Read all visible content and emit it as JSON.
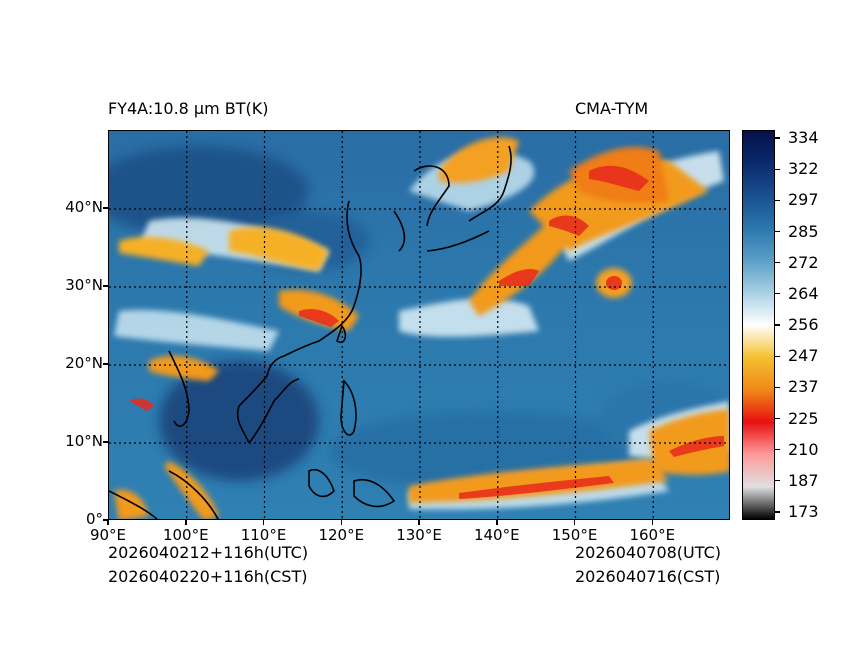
{
  "header": {
    "product": "FY4A:10.8 µm BT(K)",
    "model": "CMA-TYM"
  },
  "map": {
    "lat_labels": [
      {
        "label": "40°N",
        "value": 40
      },
      {
        "label": "30°N",
        "value": 30
      },
      {
        "label": "20°N",
        "value": 20
      },
      {
        "label": "10°N",
        "value": 10
      },
      {
        "label": "0°",
        "value": 0
      }
    ],
    "lon_labels": [
      {
        "label": "90°E",
        "value": 90
      },
      {
        "label": "100°E",
        "value": 100
      },
      {
        "label": "110°E",
        "value": 110
      },
      {
        "label": "120°E",
        "value": 120
      },
      {
        "label": "130°E",
        "value": 130
      },
      {
        "label": "140°E",
        "value": 140
      },
      {
        "label": "150°E",
        "value": 150
      },
      {
        "label": "160°E",
        "value": 160
      }
    ],
    "lon_range": [
      90,
      170
    ],
    "lat_range": [
      0,
      50
    ]
  },
  "colorbar": {
    "range": [
      173,
      334
    ],
    "ticks": [
      {
        "label": "334",
        "value": 334
      },
      {
        "label": "322",
        "value": 322
      },
      {
        "label": "297",
        "value": 297
      },
      {
        "label": "285",
        "value": 285
      },
      {
        "label": "272",
        "value": 272
      },
      {
        "label": "264",
        "value": 264
      },
      {
        "label": "256",
        "value": 256
      },
      {
        "label": "247",
        "value": 247
      },
      {
        "label": "237",
        "value": 237
      },
      {
        "label": "225",
        "value": 225
      },
      {
        "label": "210",
        "value": 210
      },
      {
        "label": "187",
        "value": 187
      },
      {
        "label": "173",
        "value": 173
      }
    ]
  },
  "footer": {
    "init_utc": "2026040212+116h(UTC)",
    "init_cst": "2026040220+116h(CST)",
    "valid_utc": "2026040708(UTC)",
    "valid_cst": "2026040716(CST)"
  },
  "colors": {
    "ocean_dark": "#1c4f86",
    "ocean_mid": "#2f7bb0",
    "cloud_light": "#c9e3f0",
    "cloud_orange": "#f29a1f",
    "cloud_red": "#e8291c"
  }
}
